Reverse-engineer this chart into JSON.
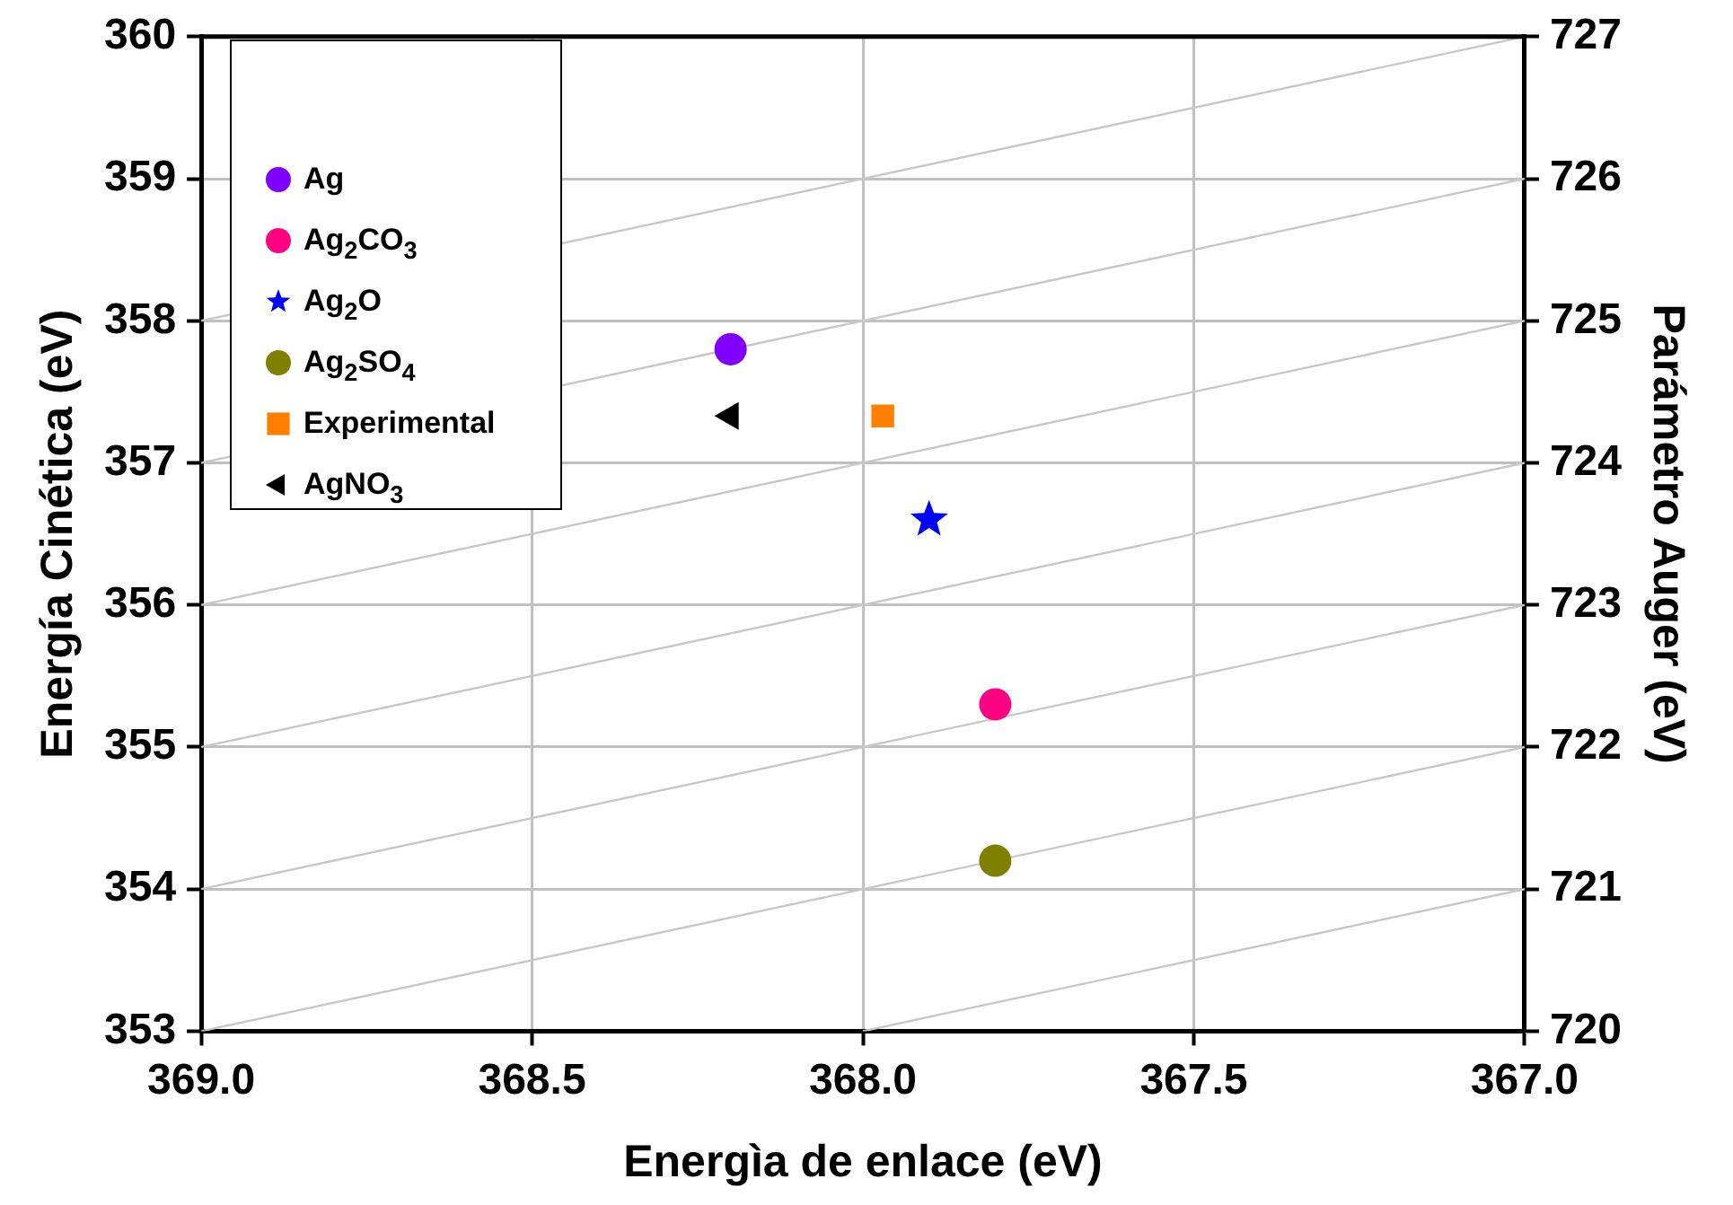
{
  "chart_data": {
    "type": "scatter",
    "xlabel": "Energìa de enlace (eV)",
    "ylabel": "Energía Cinética (eV)",
    "y2label": "Parámetro Auger (eV)",
    "xlim": [
      369,
      367
    ],
    "xticks": [
      {
        "value": 369,
        "label": "369.0"
      },
      {
        "value": 368.5,
        "label": "368.5"
      },
      {
        "value": 368,
        "label": "368.0"
      },
      {
        "value": 367.5,
        "label": "367.5"
      },
      {
        "value": 367,
        "label": "367.0"
      }
    ],
    "ylim": [
      353,
      360
    ],
    "yticks": [
      353,
      354,
      355,
      356,
      357,
      358,
      359,
      360
    ],
    "y2lim": [
      720,
      727
    ],
    "y2ticks": [
      720,
      721,
      722,
      723,
      724,
      725,
      726,
      727
    ],
    "grid": true,
    "legend": "top left",
    "series": [
      {
        "type": "line",
        "color": "#c8c8c8",
        "marker": "none",
        "x": [
          368,
          367
        ],
        "values": [
          353,
          354
        ]
      },
      {
        "type": "line",
        "color": "#c8c8c8",
        "marker": "none",
        "x": [
          369,
          367
        ],
        "values": [
          353,
          355
        ]
      },
      {
        "type": "line",
        "color": "#c8c8c8",
        "marker": "none",
        "x": [
          369,
          367
        ],
        "values": [
          354,
          356
        ]
      },
      {
        "type": "line",
        "color": "#c8c8c8",
        "marker": "none",
        "x": [
          369,
          367
        ],
        "values": [
          355,
          357
        ]
      },
      {
        "type": "line",
        "color": "#c8c8c8",
        "marker": "none",
        "x": [
          369,
          367
        ],
        "values": [
          356,
          358
        ]
      },
      {
        "type": "line",
        "color": "#c8c8c8",
        "marker": "none",
        "x": [
          369,
          367
        ],
        "values": [
          357,
          359
        ]
      },
      {
        "type": "line",
        "color": "#c8c8c8",
        "marker": "none",
        "x": [
          369,
          367
        ],
        "values": [
          358,
          360
        ]
      },
      {
        "name": "Ag",
        "color": "#8000ff",
        "marker": "circle",
        "x": [
          368.2
        ],
        "values": [
          357.8
        ]
      },
      {
        "name": "Ag$_{2}$CO$_{3}$",
        "color": "#ff0080",
        "x": [
          367.8
        ],
        "values": [
          355.3
        ]
      },
      {
        "name": "Ag$_{2}$O",
        "color": "#0000ff",
        "marker": "star",
        "x": [
          367.9
        ],
        "values": [
          356.6
        ]
      },
      {
        "name": "Ag$_{2}$SO$_{4}$",
        "color": "#808000",
        "x": [
          367.8
        ],
        "values": [
          354.2
        ]
      },
      {
        "name": "Experimental",
        "color": "#ff8000",
        "marker": "square",
        "x": [
          367.97
        ],
        "values": [
          357.33
        ]
      },
      {
        "name": "AgNO$_{3}$",
        "color": "#000000",
        "marker": "triangle",
        "x": [
          368.2
        ],
        "values": [
          357.33
        ]
      }
    ]
  }
}
